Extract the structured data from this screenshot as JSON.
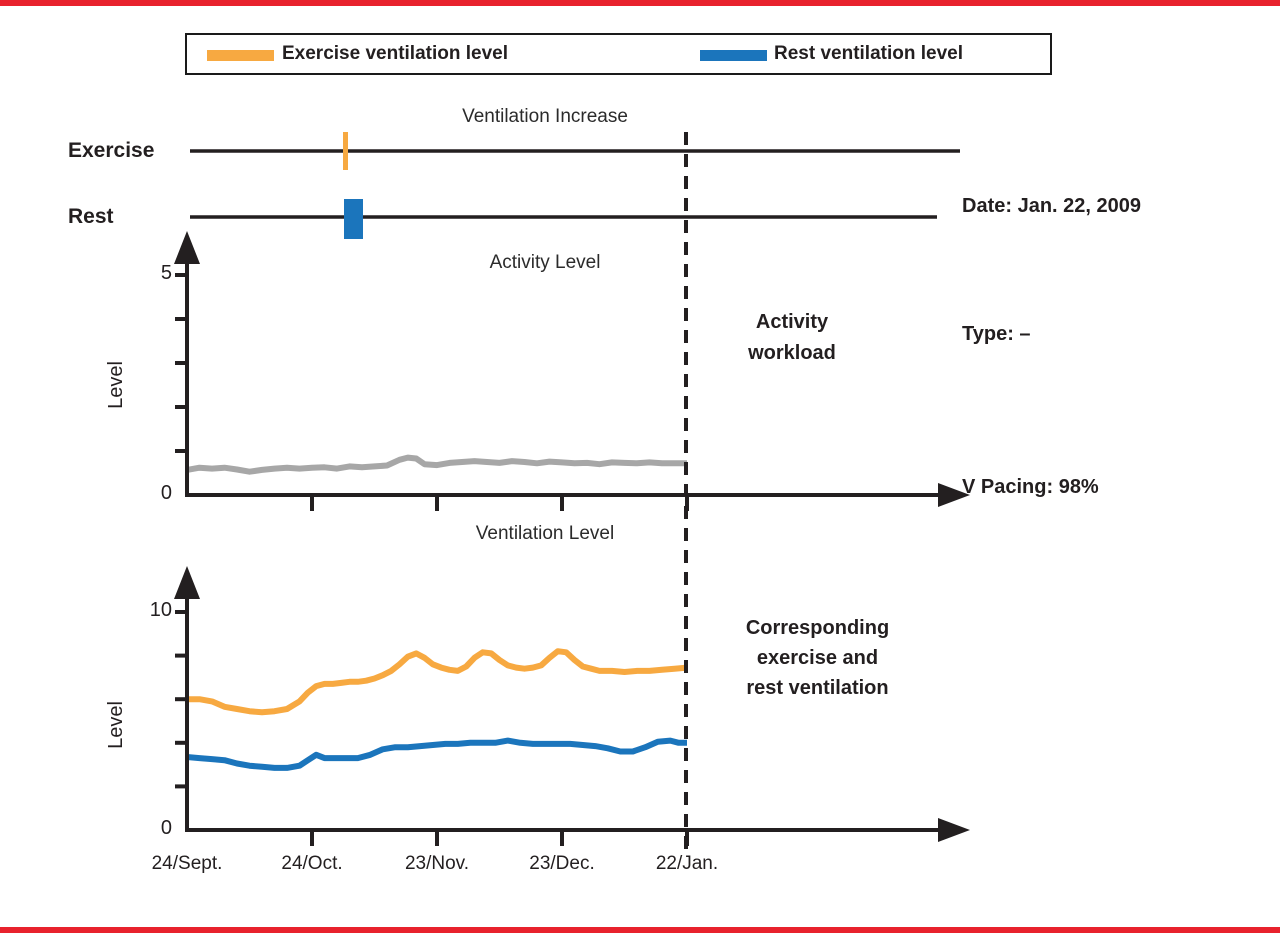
{
  "colors": {
    "exercise": "#F7A941",
    "rest": "#1B75BC",
    "activity": "#A7A7A7",
    "axis": "#231F20",
    "accent_red": "#E8222D"
  },
  "legend": {
    "items": [
      {
        "label": "Exercise ventilation level",
        "color_key": "exercise"
      },
      {
        "label": "Rest ventilation level",
        "color_key": "rest"
      }
    ]
  },
  "timeline": {
    "title": "Ventilation Increase",
    "rows": [
      {
        "label": "Exercise"
      },
      {
        "label": "Rest"
      }
    ],
    "event_day": 38
  },
  "info_panel": {
    "date": "Date: Jan. 22, 2009",
    "type": "Type: –",
    "v_pacing": "V Pacing: 98%"
  },
  "annotations": {
    "activity": "Activity\nworkload",
    "ventilation": "Corresponding\nexercise and\nrest ventilation"
  },
  "x_axis": {
    "labels": [
      "24/Sept.",
      "24/Oct.",
      "23/Nov.",
      "23/Dec.",
      "22/Jan."
    ],
    "days": [
      0,
      30,
      60,
      90,
      120
    ]
  },
  "activity_chart": {
    "title": "Activity Level",
    "ylabel": "Level",
    "ymax_label": "5",
    "ymin_label": "0"
  },
  "ventilation_chart": {
    "title": "Ventilation Level",
    "ylabel": "Level",
    "ymax_label": "10",
    "ymin_label": "0"
  },
  "chart_data": [
    {
      "type": "line",
      "title": "Activity Level",
      "ylabel": "Level",
      "ylim": [
        0,
        5
      ],
      "x_unit": "days since 24/Sept.",
      "x_tick_days": [
        0,
        30,
        60,
        90,
        120
      ],
      "x_tick_labels": [
        "24/Sept.",
        "24/Oct.",
        "23/Nov.",
        "23/Dec.",
        "22/Jan."
      ],
      "grid": false,
      "series": [
        {
          "name": "Activity workload",
          "color": "#A7A7A7",
          "points": [
            [
              0,
              0.57
            ],
            [
              3,
              0.62
            ],
            [
              6,
              0.6
            ],
            [
              9,
              0.62
            ],
            [
              12,
              0.58
            ],
            [
              15,
              0.53
            ],
            [
              18,
              0.57
            ],
            [
              21,
              0.6
            ],
            [
              24,
              0.62
            ],
            [
              27,
              0.6
            ],
            [
              30,
              0.62
            ],
            [
              33,
              0.63
            ],
            [
              36,
              0.6
            ],
            [
              39,
              0.65
            ],
            [
              42,
              0.63
            ],
            [
              45,
              0.65
            ],
            [
              48,
              0.67
            ],
            [
              51,
              0.8
            ],
            [
              53,
              0.85
            ],
            [
              55,
              0.83
            ],
            [
              57,
              0.7
            ],
            [
              60,
              0.68
            ],
            [
              63,
              0.73
            ],
            [
              66,
              0.75
            ],
            [
              69,
              0.77
            ],
            [
              72,
              0.75
            ],
            [
              75,
              0.73
            ],
            [
              78,
              0.77
            ],
            [
              81,
              0.75
            ],
            [
              84,
              0.72
            ],
            [
              87,
              0.76
            ],
            [
              90,
              0.74
            ],
            [
              93,
              0.72
            ],
            [
              96,
              0.73
            ],
            [
              99,
              0.7
            ],
            [
              102,
              0.74
            ],
            [
              105,
              0.73
            ],
            [
              108,
              0.72
            ],
            [
              111,
              0.74
            ],
            [
              114,
              0.72
            ],
            [
              117,
              0.72
            ],
            [
              120,
              0.72
            ]
          ]
        }
      ]
    },
    {
      "type": "line",
      "title": "Ventilation Level",
      "ylabel": "Level",
      "ylim": [
        0,
        10
      ],
      "x_unit": "days since 24/Sept.",
      "x_tick_days": [
        0,
        30,
        60,
        90,
        120
      ],
      "x_tick_labels": [
        "24/Sept.",
        "24/Oct.",
        "23/Nov.",
        "23/Dec.",
        "22/Jan."
      ],
      "grid": false,
      "series": [
        {
          "name": "Exercise ventilation level",
          "color": "#F7A941",
          "points": [
            [
              0,
              6.0
            ],
            [
              3,
              6.0
            ],
            [
              6,
              5.9
            ],
            [
              9,
              5.65
            ],
            [
              12,
              5.55
            ],
            [
              15,
              5.45
            ],
            [
              18,
              5.4
            ],
            [
              21,
              5.45
            ],
            [
              24,
              5.55
            ],
            [
              27,
              5.9
            ],
            [
              29,
              6.3
            ],
            [
              31,
              6.6
            ],
            [
              33,
              6.7
            ],
            [
              35,
              6.7
            ],
            [
              37,
              6.75
            ],
            [
              39,
              6.8
            ],
            [
              41,
              6.8
            ],
            [
              43,
              6.85
            ],
            [
              45,
              6.95
            ],
            [
              47,
              7.1
            ],
            [
              49,
              7.3
            ],
            [
              51,
              7.6
            ],
            [
              53,
              7.95
            ],
            [
              55,
              8.1
            ],
            [
              57,
              7.9
            ],
            [
              59,
              7.6
            ],
            [
              61,
              7.45
            ],
            [
              63,
              7.35
            ],
            [
              65,
              7.3
            ],
            [
              67,
              7.5
            ],
            [
              69,
              7.9
            ],
            [
              71,
              8.15
            ],
            [
              73,
              8.1
            ],
            [
              75,
              7.8
            ],
            [
              77,
              7.55
            ],
            [
              79,
              7.45
            ],
            [
              81,
              7.4
            ],
            [
              83,
              7.45
            ],
            [
              85,
              7.55
            ],
            [
              87,
              7.9
            ],
            [
              89,
              8.2
            ],
            [
              91,
              8.15
            ],
            [
              93,
              7.8
            ],
            [
              95,
              7.5
            ],
            [
              97,
              7.4
            ],
            [
              99,
              7.3
            ],
            [
              102,
              7.3
            ],
            [
              105,
              7.25
            ],
            [
              108,
              7.3
            ],
            [
              111,
              7.3
            ],
            [
              114,
              7.35
            ],
            [
              117,
              7.4
            ],
            [
              120,
              7.45
            ]
          ]
        },
        {
          "name": "Rest ventilation level",
          "color": "#1B75BC",
          "points": [
            [
              0,
              3.35
            ],
            [
              3,
              3.3
            ],
            [
              6,
              3.25
            ],
            [
              9,
              3.2
            ],
            [
              12,
              3.05
            ],
            [
              15,
              2.95
            ],
            [
              18,
              2.9
            ],
            [
              21,
              2.85
            ],
            [
              24,
              2.85
            ],
            [
              27,
              2.95
            ],
            [
              29,
              3.2
            ],
            [
              31,
              3.45
            ],
            [
              33,
              3.3
            ],
            [
              35,
              3.3
            ],
            [
              38,
              3.3
            ],
            [
              41,
              3.3
            ],
            [
              44,
              3.45
            ],
            [
              47,
              3.7
            ],
            [
              50,
              3.8
            ],
            [
              53,
              3.8
            ],
            [
              56,
              3.85
            ],
            [
              59,
              3.9
            ],
            [
              62,
              3.95
            ],
            [
              65,
              3.95
            ],
            [
              68,
              4.0
            ],
            [
              71,
              4.0
            ],
            [
              74,
              4.0
            ],
            [
              77,
              4.1
            ],
            [
              80,
              4.0
            ],
            [
              83,
              3.95
            ],
            [
              86,
              3.95
            ],
            [
              89,
              3.95
            ],
            [
              92,
              3.95
            ],
            [
              95,
              3.9
            ],
            [
              98,
              3.85
            ],
            [
              101,
              3.75
            ],
            [
              104,
              3.6
            ],
            [
              107,
              3.6
            ],
            [
              110,
              3.8
            ],
            [
              113,
              4.05
            ],
            [
              116,
              4.1
            ],
            [
              118,
              4.0
            ],
            [
              120,
              4.0
            ]
          ]
        }
      ]
    }
  ]
}
